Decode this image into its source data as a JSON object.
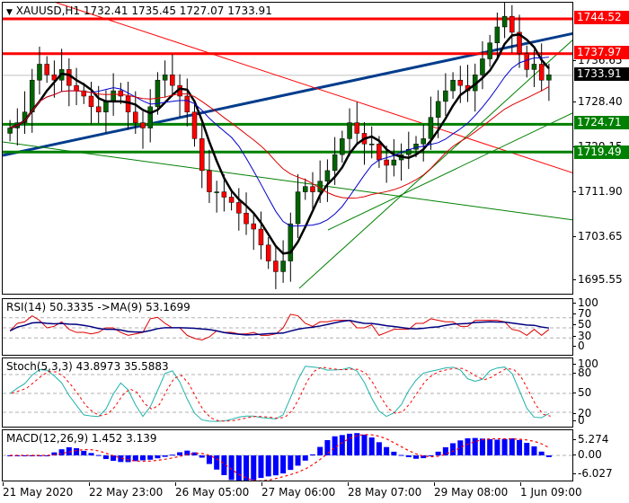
{
  "header": {
    "symbol_line": "XAUUSD,H1  1732.41 1735.45 1727.07 1733.91",
    "symbol": "XAUUSD",
    "timeframe": "H1",
    "open": "1732.41",
    "high": "1735.45",
    "low": "1727.07",
    "close": "1733.91"
  },
  "price_axis": {
    "ticks": [
      "1736.65",
      "1728.40",
      "1720.15",
      "1711.90",
      "1703.65",
      "1695.55"
    ],
    "current_price": "1733.91",
    "levels": [
      {
        "value": "1744.52",
        "color": "#ff0000"
      },
      {
        "value": "1737.97",
        "color": "#ff0000"
      },
      {
        "value": "1724.71",
        "color": "#008000"
      },
      {
        "value": "1719.49",
        "color": "#008000"
      }
    ]
  },
  "indicators": {
    "rsi": {
      "title": "RSI(14) 50.3335  ->MA(9) 53.1699",
      "ticks": [
        "100",
        "70",
        "50",
        "30",
        "0"
      ]
    },
    "stoch": {
      "title": "Stoch(5,3,3) 43.8973 35.5883",
      "ticks": [
        "100",
        "80",
        "50",
        "20",
        "0"
      ]
    },
    "macd": {
      "title": "MACD(12,26,9) 1.452 3.139",
      "ticks": [
        "5.274",
        "0.00",
        "-6.027"
      ]
    }
  },
  "time_axis": {
    "labels": [
      "21 May 2020",
      "22 May 23:00",
      "26 May 05:00",
      "27 May 06:00",
      "28 May 07:00",
      "29 May 08:00",
      "1 Jun 09:00"
    ]
  },
  "colors": {
    "bull": "#006400",
    "bear": "#ff0000",
    "ma_fast": "#000000",
    "ma_mid": "#0000cc",
    "ma_slow": "#dd0000",
    "trend_blue": "#003c8c",
    "trend_green": "#008000",
    "rsi": "#dd0000",
    "rsi_ma": "#000080",
    "stoch_main": "#20b2aa",
    "stoch_signal": "#ff0000",
    "macd_hist": "#0000ff",
    "macd_signal": "#ff0000"
  },
  "chart_data": [
    {
      "type": "candlestick",
      "title": "XAUUSD,H1",
      "ylabel": "Price",
      "ylim": [
        1690,
        1750
      ],
      "x_labels": [
        "21 May 2020",
        "22 May 23:00",
        "26 May 05:00",
        "27 May 06:00",
        "28 May 07:00",
        "29 May 08:00",
        "1 Jun 09:00"
      ],
      "ohlc_last": {
        "open": 1732.41,
        "high": 1735.45,
        "low": 1727.07,
        "close": 1733.91
      },
      "horizontal_levels": [
        1744.52,
        1737.97,
        1724.71,
        1719.49
      ],
      "close_approx": [
        1724,
        1725,
        1727,
        1733,
        1736,
        1734,
        1733,
        1735,
        1732,
        1731,
        1730,
        1728,
        1727,
        1729,
        1731,
        1730,
        1727,
        1725,
        1724,
        1728,
        1733,
        1734,
        1732,
        1730,
        1727,
        1722,
        1716,
        1712,
        1712,
        1711,
        1710,
        1708,
        1706,
        1705,
        1702,
        1699,
        1697,
        1699,
        1706,
        1712,
        1713,
        1712,
        1714,
        1716,
        1719,
        1722,
        1725,
        1723,
        1721,
        1721,
        1718,
        1717,
        1718,
        1719,
        1720,
        1721,
        1722,
        1726,
        1729,
        1731,
        1733,
        1732,
        1731,
        1734,
        1737,
        1740,
        1743,
        1745,
        1742,
        1738,
        1735,
        1736,
        1733,
        1734
      ],
      "series_overlays": [
        "MA fast (black)",
        "MA mid (blue)",
        "MA slow (red)"
      ]
    },
    {
      "type": "line",
      "title": "RSI(14) 50.3335  ->MA(9) 53.1699",
      "ylim": [
        0,
        100
      ],
      "levels": [
        70,
        50,
        30
      ],
      "series": [
        {
          "name": "RSI(14)",
          "last": 50.3335
        },
        {
          "name": "MA(9)",
          "last": 53.1699
        }
      ]
    },
    {
      "type": "line",
      "title": "Stoch(5,3,3) 43.8973 35.5883",
      "ylim": [
        0,
        100
      ],
      "levels": [
        80,
        50,
        20
      ],
      "series": [
        {
          "name": "%K",
          "last": 43.8973
        },
        {
          "name": "%D",
          "last": 35.5883
        }
      ]
    },
    {
      "type": "bar",
      "title": "MACD(12,26,9) 1.452 3.139",
      "ylim": [
        -6.027,
        5.274
      ],
      "series": [
        {
          "name": "MACD",
          "last": 1.452
        },
        {
          "name": "Signal",
          "last": 3.139
        }
      ]
    }
  ]
}
